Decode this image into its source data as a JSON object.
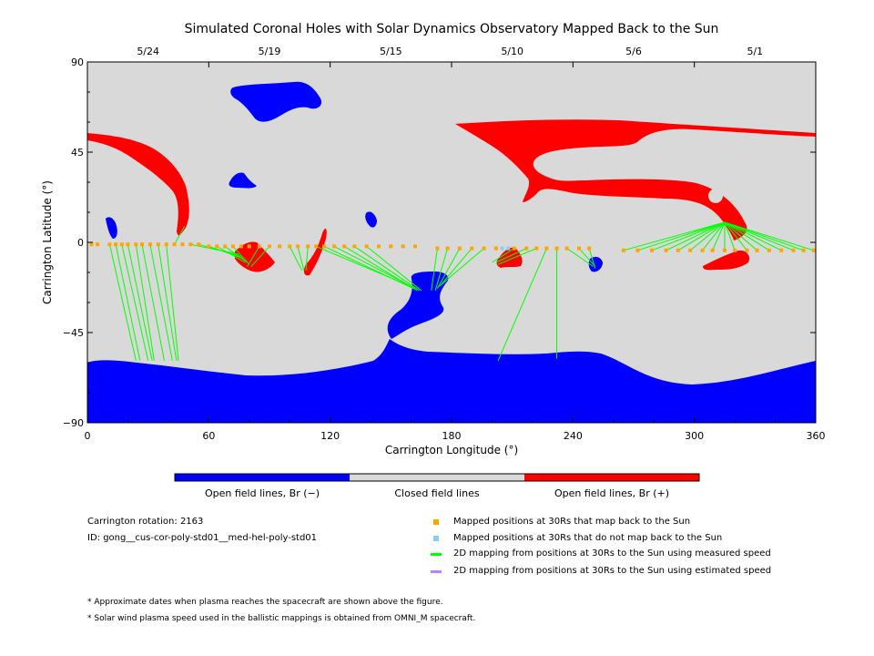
{
  "chart_data": {
    "type": "map",
    "title": "Simulated Coronal Holes with Solar Dynamics Observatory Mapped Back to the Sun",
    "xlabel": "Carrington Longitude (°)",
    "ylabel": "Carrington Latitude (°)",
    "xlim": [
      0,
      360
    ],
    "ylim": [
      -90,
      90
    ],
    "x_ticks": [
      "0",
      "60",
      "120",
      "180",
      "240",
      "300",
      "360"
    ],
    "y_ticks": [
      "90",
      "45",
      "0",
      "−45",
      "−90"
    ],
    "top_axis_dates": [
      {
        "lon": 30,
        "label": "5/24"
      },
      {
        "lon": 90,
        "label": "5/19"
      },
      {
        "lon": 150,
        "label": "5/15"
      },
      {
        "lon": 210,
        "label": "5/10"
      },
      {
        "lon": 270,
        "label": "5/6"
      },
      {
        "lon": 330,
        "label": "5/1"
      }
    ],
    "colors": {
      "open_negative": "#0000ff",
      "closed": "#d9d9d9",
      "open_positive": "#ff0000",
      "mapped": "#ffa500",
      "not_mapped": "#87cefa",
      "measured": "#00ff00",
      "estimated": "#c080ff"
    },
    "mapped_positions_30Rs": [
      {
        "lon": 2,
        "lat": -1
      },
      {
        "lon": 5,
        "lat": -1
      },
      {
        "lon": 11,
        "lat": -1
      },
      {
        "lon": 14,
        "lat": -1
      },
      {
        "lon": 17,
        "lat": -1
      },
      {
        "lon": 20,
        "lat": -1
      },
      {
        "lon": 24,
        "lat": -1
      },
      {
        "lon": 27,
        "lat": -1
      },
      {
        "lon": 31,
        "lat": -1
      },
      {
        "lon": 35,
        "lat": -1
      },
      {
        "lon": 39,
        "lat": -1
      },
      {
        "lon": 43,
        "lat": -1
      },
      {
        "lon": 47,
        "lat": -1
      },
      {
        "lon": 51,
        "lat": -1
      },
      {
        "lon": 55,
        "lat": -1
      },
      {
        "lon": 60,
        "lat": -2
      },
      {
        "lon": 64,
        "lat": -2
      },
      {
        "lon": 68,
        "lat": -2
      },
      {
        "lon": 72,
        "lat": -2
      },
      {
        "lon": 76,
        "lat": -2
      },
      {
        "lon": 80,
        "lat": -2
      },
      {
        "lon": 85,
        "lat": -2
      },
      {
        "lon": 90,
        "lat": -2
      },
      {
        "lon": 95,
        "lat": -2
      },
      {
        "lon": 100,
        "lat": -2
      },
      {
        "lon": 104,
        "lat": -2
      },
      {
        "lon": 109,
        "lat": -2
      },
      {
        "lon": 113,
        "lat": -2
      },
      {
        "lon": 117,
        "lat": -2
      },
      {
        "lon": 122,
        "lat": -2
      },
      {
        "lon": 127,
        "lat": -2
      },
      {
        "lon": 132,
        "lat": -2
      },
      {
        "lon": 138,
        "lat": -2
      },
      {
        "lon": 144,
        "lat": -2
      },
      {
        "lon": 150,
        "lat": -2
      },
      {
        "lon": 156,
        "lat": -2
      },
      {
        "lon": 162,
        "lat": -2
      },
      {
        "lon": 173,
        "lat": -3
      },
      {
        "lon": 178,
        "lat": -3
      },
      {
        "lon": 184,
        "lat": -3
      },
      {
        "lon": 190,
        "lat": -3
      },
      {
        "lon": 196,
        "lat": -3
      },
      {
        "lon": 202,
        "lat": -3
      },
      {
        "lon": 211,
        "lat": -3
      },
      {
        "lon": 217,
        "lat": -3
      },
      {
        "lon": 222,
        "lat": -3
      },
      {
        "lon": 227,
        "lat": -3
      },
      {
        "lon": 232,
        "lat": -3
      },
      {
        "lon": 237,
        "lat": -3
      },
      {
        "lon": 243,
        "lat": -3
      },
      {
        "lon": 248,
        "lat": -3
      },
      {
        "lon": 265,
        "lat": -4
      },
      {
        "lon": 272,
        "lat": -4
      },
      {
        "lon": 279,
        "lat": -4
      },
      {
        "lon": 286,
        "lat": -4
      },
      {
        "lon": 292,
        "lat": -4
      },
      {
        "lon": 298,
        "lat": -4
      },
      {
        "lon": 304,
        "lat": -4
      },
      {
        "lon": 309,
        "lat": -4
      },
      {
        "lon": 315,
        "lat": -4
      },
      {
        "lon": 320,
        "lat": -4
      },
      {
        "lon": 326,
        "lat": -4
      },
      {
        "lon": 331,
        "lat": -4
      },
      {
        "lon": 337,
        "lat": -4
      },
      {
        "lon": 343,
        "lat": -4
      },
      {
        "lon": 349,
        "lat": -4
      },
      {
        "lon": 354,
        "lat": -4
      },
      {
        "lon": 359,
        "lat": -4
      }
    ],
    "unmapped_positions_30Rs": [
      {
        "lon": 205,
        "lat": -3
      },
      {
        "lon": 208,
        "lat": -3
      }
    ],
    "measured_speed_mappings": [
      {
        "from": [
          11,
          -1
        ],
        "to": [
          24,
          -59
        ]
      },
      {
        "from": [
          14,
          -1
        ],
        "to": [
          26,
          -59
        ]
      },
      {
        "from": [
          17,
          -1
        ],
        "to": [
          30,
          -59
        ]
      },
      {
        "from": [
          20,
          -1
        ],
        "to": [
          32,
          -59
        ]
      },
      {
        "from": [
          24,
          -1
        ],
        "to": [
          33,
          -59
        ]
      },
      {
        "from": [
          27,
          -1
        ],
        "to": [
          38,
          -59
        ]
      },
      {
        "from": [
          31,
          -1
        ],
        "to": [
          42,
          -59
        ]
      },
      {
        "from": [
          35,
          -1
        ],
        "to": [
          44,
          -59
        ]
      },
      {
        "from": [
          39,
          -1
        ],
        "to": [
          45,
          -59
        ]
      },
      {
        "from": [
          43,
          -1
        ],
        "to": [
          48,
          8
        ]
      },
      {
        "from": [
          51,
          -1
        ],
        "to": [
          75,
          -6
        ]
      },
      {
        "from": [
          55,
          -1
        ],
        "to": [
          76,
          -7
        ]
      },
      {
        "from": [
          60,
          -2
        ],
        "to": [
          77,
          -8
        ]
      },
      {
        "from": [
          64,
          -2
        ],
        "to": [
          78,
          -10
        ]
      },
      {
        "from": [
          68,
          -2
        ],
        "to": [
          79,
          -10
        ]
      },
      {
        "from": [
          72,
          -2
        ],
        "to": [
          80,
          -11
        ]
      },
      {
        "from": [
          85,
          -2
        ],
        "to": [
          79,
          -12
        ]
      },
      {
        "from": [
          90,
          -2
        ],
        "to": [
          81,
          -12
        ]
      },
      {
        "from": [
          100,
          -2
        ],
        "to": [
          106,
          -14
        ]
      },
      {
        "from": [
          104,
          -2
        ],
        "to": [
          107,
          -14
        ]
      },
      {
        "from": [
          109,
          -2
        ],
        "to": [
          108,
          -14
        ]
      },
      {
        "from": [
          113,
          -2
        ],
        "to": [
          160,
          -22
        ]
      },
      {
        "from": [
          117,
          -2
        ],
        "to": [
          161,
          -23
        ]
      },
      {
        "from": [
          122,
          -2
        ],
        "to": [
          162,
          -23
        ]
      },
      {
        "from": [
          127,
          -2
        ],
        "to": [
          163,
          -24
        ]
      },
      {
        "from": [
          132,
          -2
        ],
        "to": [
          164,
          -24
        ]
      },
      {
        "from": [
          138,
          -2
        ],
        "to": [
          165,
          -24
        ]
      },
      {
        "from": [
          173,
          -3
        ],
        "to": [
          170,
          -24
        ]
      },
      {
        "from": [
          178,
          -3
        ],
        "to": [
          172,
          -24
        ]
      },
      {
        "from": [
          184,
          -3
        ],
        "to": [
          173,
          -23
        ]
      },
      {
        "from": [
          190,
          -3
        ],
        "to": [
          174,
          -22
        ]
      },
      {
        "from": [
          196,
          -3
        ],
        "to": [
          175,
          -21
        ]
      },
      {
        "from": [
          211,
          -3
        ],
        "to": [
          200,
          -10
        ]
      },
      {
        "from": [
          217,
          -3
        ],
        "to": [
          202,
          -10
        ]
      },
      {
        "from": [
          222,
          -3
        ],
        "to": [
          203,
          -11
        ]
      },
      {
        "from": [
          227,
          -3
        ],
        "to": [
          203,
          -59
        ]
      },
      {
        "from": [
          232,
          -3
        ],
        "to": [
          232,
          -58
        ]
      },
      {
        "from": [
          237,
          -3
        ],
        "to": [
          250,
          -12
        ]
      },
      {
        "from": [
          243,
          -3
        ],
        "to": [
          251,
          -12
        ]
      },
      {
        "from": [
          248,
          -3
        ],
        "to": [
          251,
          -13
        ]
      },
      {
        "from": [
          265,
          -4
        ],
        "to": [
          315,
          10
        ]
      },
      {
        "from": [
          272,
          -4
        ],
        "to": [
          315,
          10
        ]
      },
      {
        "from": [
          279,
          -4
        ],
        "to": [
          315,
          10
        ]
      },
      {
        "from": [
          286,
          -4
        ],
        "to": [
          315,
          10
        ]
      },
      {
        "from": [
          292,
          -4
        ],
        "to": [
          315,
          10
        ]
      },
      {
        "from": [
          298,
          -4
        ],
        "to": [
          315,
          10
        ]
      },
      {
        "from": [
          304,
          -4
        ],
        "to": [
          315,
          10
        ]
      },
      {
        "from": [
          309,
          -4
        ],
        "to": [
          315,
          10
        ]
      },
      {
        "from": [
          315,
          -4
        ],
        "to": [
          315,
          10
        ]
      },
      {
        "from": [
          320,
          -4
        ],
        "to": [
          315,
          10
        ]
      },
      {
        "from": [
          326,
          -4
        ],
        "to": [
          315,
          10
        ]
      },
      {
        "from": [
          331,
          -4
        ],
        "to": [
          315,
          10
        ]
      },
      {
        "from": [
          337,
          -4
        ],
        "to": [
          315,
          10
        ]
      },
      {
        "from": [
          343,
          -4
        ],
        "to": [
          315,
          10
        ]
      },
      {
        "from": [
          349,
          -4
        ],
        "to": [
          315,
          10
        ]
      },
      {
        "from": [
          354,
          -4
        ],
        "to": [
          315,
          10
        ]
      },
      {
        "from": [
          359,
          -4
        ],
        "to": [
          315,
          10
        ]
      }
    ]
  },
  "colorbar": {
    "labels": [
      "Open field lines, Br (−)",
      "Closed field lines",
      "Open field lines, Br (+)"
    ]
  },
  "info": {
    "rotation": "Carrington rotation: 2163",
    "id": "ID: gong__cus-cor-poly-std01__med-hel-poly-std01"
  },
  "legend": [
    {
      "label": "Mapped positions at 30Rs that map back to the Sun",
      "color": "#ffa500",
      "kind": "square",
      "icon": "square-marker"
    },
    {
      "label": "Mapped positions at 30Rs that do not map back to the Sun",
      "color": "#87cefa",
      "kind": "square",
      "icon": "square-marker"
    },
    {
      "label": "2D mapping from positions at 30Rs to the Sun using measured speed",
      "color": "#00ff00",
      "kind": "line",
      "icon": "line-marker"
    },
    {
      "label": "2D mapping from positions at 30Rs to the Sun using estimated speed",
      "color": "#c080ff",
      "kind": "line",
      "icon": "line-marker"
    }
  ],
  "notes": [
    "* Approximate dates when plasma reaches the spacecraft are shown above the figure.",
    "* Solar wind plasma speed used in the ballistic mappings is obtained from OMNI_M spacecraft."
  ]
}
